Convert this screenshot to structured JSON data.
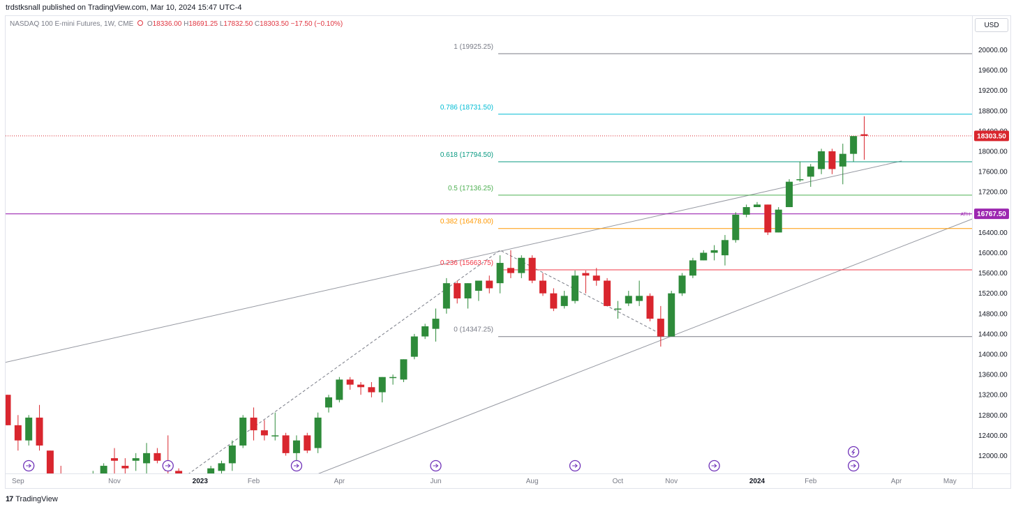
{
  "header": {
    "published_text": "trdstksnall published on TradingView.com, Mar 10, 2024 15:47 UTC-4"
  },
  "legend": {
    "symbol": "NASDAQ 100 E-mini Futures, 1W, CME",
    "open_key": "O",
    "open_val": "18336.00",
    "high_key": "H",
    "high_val": "18691.25",
    "low_key": "L",
    "low_val": "17832.50",
    "close_key": "C",
    "close_val": "18303.50",
    "change": "−17.50 (−0.10%)"
  },
  "currency_button": "USD",
  "footer": {
    "logo_text": "TradingView",
    "logo_mark": "17"
  },
  "colors": {
    "up": "#2e8b3a",
    "down": "#d9262e",
    "grid_line": "#9598a1",
    "ath": "#9c27b0",
    "fib_786": "#00bcd4",
    "fib_618": "#089981",
    "fib_05": "#4caf50",
    "fib_0382": "#ff9800",
    "fib_0236": "#f23645",
    "fib_neutral": "#787b86"
  },
  "chart_data": {
    "type": "candlestick",
    "price_axis": {
      "ticks": [
        12000,
        12400,
        12800,
        13200,
        13600,
        14000,
        14400,
        14800,
        15200,
        15600,
        16000,
        16400,
        16800,
        17200,
        17600,
        18000,
        18400,
        18800,
        19200,
        19600,
        20000
      ],
      "tick_labels": [
        "12000.00",
        "12400.00",
        "12800.00",
        "13200.00",
        "13600.00",
        "14000.00",
        "14400.00",
        "14800.00",
        "15200.00",
        "15600.00",
        "16000.00",
        "16400.00",
        "16800.00",
        "17200.00",
        "17600.00",
        "18000.00",
        "18400.00",
        "18800.00",
        "19200.00",
        "19600.00",
        "20000.00"
      ],
      "ylim": [
        11600,
        20700
      ]
    },
    "time_axis": {
      "labels": [
        {
          "text": "Sep",
          "bar": 1,
          "bold": false
        },
        {
          "text": "Nov",
          "bar": 10,
          "bold": false
        },
        {
          "text": "2023",
          "bar": 18,
          "bold": true
        },
        {
          "text": "Feb",
          "bar": 23,
          "bold": false
        },
        {
          "text": "Apr",
          "bar": 31,
          "bold": false
        },
        {
          "text": "Jun",
          "bar": 40,
          "bold": false
        },
        {
          "text": "Aug",
          "bar": 49,
          "bold": false
        },
        {
          "text": "Oct",
          "bar": 57,
          "bold": false
        },
        {
          "text": "Nov",
          "bar": 62,
          "bold": false
        },
        {
          "text": "2024",
          "bar": 70,
          "bold": true
        },
        {
          "text": "Feb",
          "bar": 75,
          "bold": false
        },
        {
          "text": "Apr",
          "bar": 83,
          "bold": false
        },
        {
          "text": "May",
          "bar": 88,
          "bold": false
        }
      ],
      "total_bars": 91
    },
    "candles": [
      {
        "o": 13200,
        "h": 13200,
        "l": 12600,
        "c": 12600
      },
      {
        "o": 12600,
        "h": 12800,
        "l": 12100,
        "c": 12300
      },
      {
        "o": 12300,
        "h": 12800,
        "l": 12200,
        "c": 12750
      },
      {
        "o": 12750,
        "h": 13000,
        "l": 12100,
        "c": 12200
      },
      {
        "o": 12100,
        "h": 12100,
        "l": 11400,
        "c": 11500
      },
      {
        "o": 11500,
        "h": 11800,
        "l": 11100,
        "c": 11300
      },
      {
        "o": 11300,
        "h": 11600,
        "l": 11050,
        "c": 11250
      },
      {
        "o": 11400,
        "h": 11650,
        "l": 11100,
        "c": 11350
      },
      {
        "o": 11350,
        "h": 11700,
        "l": 11200,
        "c": 11450
      },
      {
        "o": 11450,
        "h": 11850,
        "l": 11300,
        "c": 11800
      },
      {
        "o": 11950,
        "h": 12150,
        "l": 11500,
        "c": 11900
      },
      {
        "o": 11800,
        "h": 11950,
        "l": 11600,
        "c": 11750
      },
      {
        "o": 11900,
        "h": 12050,
        "l": 11700,
        "c": 11950
      },
      {
        "o": 11850,
        "h": 12250,
        "l": 11650,
        "c": 12050
      },
      {
        "o": 12050,
        "h": 12150,
        "l": 11850,
        "c": 11900
      },
      {
        "o": 11850,
        "h": 12400,
        "l": 11250,
        "c": 11700
      },
      {
        "o": 11700,
        "h": 11750,
        "l": 11050,
        "c": 11250
      },
      {
        "o": 11250,
        "h": 11450,
        "l": 10850,
        "c": 11400
      },
      {
        "o": 11350,
        "h": 11600,
        "l": 11200,
        "c": 11550
      },
      {
        "o": 11500,
        "h": 11800,
        "l": 11400,
        "c": 11750
      },
      {
        "o": 11700,
        "h": 11900,
        "l": 11500,
        "c": 11850
      },
      {
        "o": 11850,
        "h": 12300,
        "l": 11700,
        "c": 12200
      },
      {
        "o": 12200,
        "h": 12800,
        "l": 12150,
        "c": 12750
      },
      {
        "o": 12750,
        "h": 12950,
        "l": 12300,
        "c": 12500
      },
      {
        "o": 12500,
        "h": 12700,
        "l": 12300,
        "c": 12400
      },
      {
        "o": 12400,
        "h": 12850,
        "l": 12300,
        "c": 12400
      },
      {
        "o": 12400,
        "h": 12450,
        "l": 12000,
        "c": 12050
      },
      {
        "o": 12050,
        "h": 12400,
        "l": 11900,
        "c": 12300
      },
      {
        "o": 12400,
        "h": 12450,
        "l": 12050,
        "c": 12100
      },
      {
        "o": 12150,
        "h": 12850,
        "l": 12050,
        "c": 12750
      },
      {
        "o": 12950,
        "h": 13200,
        "l": 12850,
        "c": 13150
      },
      {
        "o": 13100,
        "h": 13550,
        "l": 13050,
        "c": 13500
      },
      {
        "o": 13500,
        "h": 13550,
        "l": 13300,
        "c": 13400
      },
      {
        "o": 13400,
        "h": 13450,
        "l": 13200,
        "c": 13350
      },
      {
        "o": 13350,
        "h": 13450,
        "l": 13150,
        "c": 13250
      },
      {
        "o": 13250,
        "h": 13550,
        "l": 13050,
        "c": 13550
      },
      {
        "o": 13550,
        "h": 13600,
        "l": 13400,
        "c": 13550
      },
      {
        "o": 13500,
        "h": 13900,
        "l": 13450,
        "c": 13900
      },
      {
        "o": 13950,
        "h": 14400,
        "l": 13900,
        "c": 14350
      },
      {
        "o": 14350,
        "h": 14600,
        "l": 14300,
        "c": 14550
      },
      {
        "o": 14500,
        "h": 14900,
        "l": 14250,
        "c": 14700
      },
      {
        "o": 14900,
        "h": 15500,
        "l": 14800,
        "c": 15400
      },
      {
        "o": 15400,
        "h": 15450,
        "l": 15000,
        "c": 15100
      },
      {
        "o": 15100,
        "h": 15400,
        "l": 14900,
        "c": 15400
      },
      {
        "o": 15250,
        "h": 15450,
        "l": 15050,
        "c": 15450
      },
      {
        "o": 15450,
        "h": 15550,
        "l": 15200,
        "c": 15300
      },
      {
        "o": 15400,
        "h": 15950,
        "l": 15200,
        "c": 15800
      },
      {
        "o": 15700,
        "h": 16050,
        "l": 15500,
        "c": 15600
      },
      {
        "o": 15600,
        "h": 15950,
        "l": 15500,
        "c": 15900
      },
      {
        "o": 15900,
        "h": 15950,
        "l": 15400,
        "c": 15450
      },
      {
        "o": 15450,
        "h": 15600,
        "l": 15150,
        "c": 15200
      },
      {
        "o": 15200,
        "h": 15300,
        "l": 14850,
        "c": 14900
      },
      {
        "o": 14950,
        "h": 15250,
        "l": 14900,
        "c": 15150
      },
      {
        "o": 15050,
        "h": 15650,
        "l": 15000,
        "c": 15550
      },
      {
        "o": 15600,
        "h": 15650,
        "l": 15200,
        "c": 15550
      },
      {
        "o": 15550,
        "h": 15700,
        "l": 15350,
        "c": 15450
      },
      {
        "o": 15450,
        "h": 15500,
        "l": 14950,
        "c": 14950
      },
      {
        "o": 14900,
        "h": 15050,
        "l": 14700,
        "c": 14900
      },
      {
        "o": 15000,
        "h": 15250,
        "l": 14950,
        "c": 15150
      },
      {
        "o": 15050,
        "h": 15450,
        "l": 14950,
        "c": 15150
      },
      {
        "o": 15150,
        "h": 15200,
        "l": 14650,
        "c": 14700
      },
      {
        "o": 14700,
        "h": 14950,
        "l": 14150,
        "c": 14350
      },
      {
        "o": 14350,
        "h": 15250,
        "l": 14350,
        "c": 15200
      },
      {
        "o": 15200,
        "h": 15600,
        "l": 15150,
        "c": 15550
      },
      {
        "o": 15550,
        "h": 15900,
        "l": 15500,
        "c": 15850
      },
      {
        "o": 15850,
        "h": 16050,
        "l": 15850,
        "c": 16000
      },
      {
        "o": 16000,
        "h": 16150,
        "l": 15850,
        "c": 16050
      },
      {
        "o": 15950,
        "h": 16350,
        "l": 15750,
        "c": 16250
      },
      {
        "o": 16250,
        "h": 16800,
        "l": 16200,
        "c": 16750
      },
      {
        "o": 16750,
        "h": 16950,
        "l": 16700,
        "c": 16900
      },
      {
        "o": 16900,
        "h": 17000,
        "l": 16900,
        "c": 16950
      },
      {
        "o": 16950,
        "h": 16950,
        "l": 16350,
        "c": 16400
      },
      {
        "o": 16400,
        "h": 16900,
        "l": 16400,
        "c": 16850
      },
      {
        "o": 16900,
        "h": 17450,
        "l": 16900,
        "c": 17400
      },
      {
        "o": 17450,
        "h": 17800,
        "l": 17400,
        "c": 17450
      },
      {
        "o": 17500,
        "h": 17750,
        "l": 17300,
        "c": 17700
      },
      {
        "o": 17650,
        "h": 18050,
        "l": 17550,
        "c": 18000
      },
      {
        "o": 18000,
        "h": 18050,
        "l": 17550,
        "c": 17650
      },
      {
        "o": 17700,
        "h": 18150,
        "l": 17350,
        "c": 17950
      },
      {
        "o": 17950,
        "h": 18300,
        "l": 17800,
        "c": 18300
      },
      {
        "o": 18336,
        "h": 18691.25,
        "l": 17832.5,
        "c": 18303.5
      }
    ],
    "fib_levels": [
      {
        "ratio": "1",
        "price": 19925.25,
        "label": "1 (19925.25)",
        "color": "#787b86"
      },
      {
        "ratio": "0.786",
        "price": 18731.5,
        "label": "0.786 (18731.50)",
        "color": "#00bcd4"
      },
      {
        "ratio": "0.618",
        "price": 17794.5,
        "label": "0.618 (17794.50)",
        "color": "#089981"
      },
      {
        "ratio": "0.5",
        "price": 17136.25,
        "label": "0.5 (17136.25)",
        "color": "#4caf50"
      },
      {
        "ratio": "0.382",
        "price": 16478.0,
        "label": "0.382 (16478.00)",
        "color": "#ff9800"
      },
      {
        "ratio": "0.236",
        "price": 15663.75,
        "label": "0.236 (15663.75)",
        "color": "#f23645"
      },
      {
        "ratio": "0",
        "price": 14347.25,
        "label": "0 (14347.25)",
        "color": "#787b86"
      }
    ],
    "ath": {
      "price": 16767.5,
      "label": "ATH",
      "price_label": "16767.50"
    },
    "last_price": {
      "price": 18303.5,
      "label": "18303.50"
    },
    "trendlines": [
      {
        "from": {
          "bar": -1,
          "price": 13800
        },
        "to": {
          "bar": 83.5,
          "price": 17810
        }
      },
      {
        "from": {
          "bar": 28.5,
          "price": 11600
        },
        "to": {
          "bar": 90.5,
          "price": 16700
        }
      }
    ],
    "swing_path": [
      {
        "bar": 15,
        "price": 11350
      },
      {
        "bar": 46,
        "price": 16050
      },
      {
        "bar": 61,
        "price": 14400
      }
    ],
    "event_markers": [
      {
        "bar": 2,
        "type": "dividend"
      },
      {
        "bar": 15,
        "type": "dividend"
      },
      {
        "bar": 27,
        "type": "dividend"
      },
      {
        "bar": 40,
        "type": "dividend"
      },
      {
        "bar": 53,
        "type": "dividend"
      },
      {
        "bar": 66,
        "type": "dividend"
      },
      {
        "bar": 79,
        "type": "dividend"
      }
    ],
    "split_marker": {
      "bar": 79
    }
  }
}
